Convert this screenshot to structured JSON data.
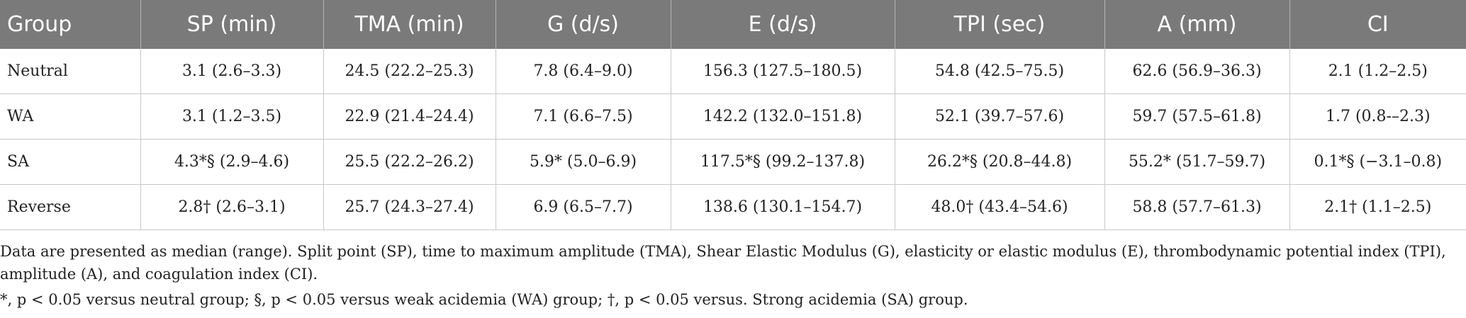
{
  "table": {
    "headers": [
      "Group",
      "SP (min)",
      "TMA (min)",
      "G (d/s)",
      "E (d/s)",
      "TPI (sec)",
      "A (mm)",
      "CI"
    ],
    "rows": [
      [
        "Neutral",
        "3.1 (2.6–3.3)",
        "24.5 (22.2–25.3)",
        "7.8 (6.4–9.0)",
        "156.3 (127.5–180.5)",
        "54.8 (42.5–75.5)",
        "62.6 (56.9–36.3)",
        "2.1 (1.2–2.5)"
      ],
      [
        "WA",
        "3.1 (1.2–3.5)",
        "22.9 (21.4–24.4)",
        "7.1 (6.6–7.5)",
        "142.2 (132.0–151.8)",
        "52.1 (39.7–57.6)",
        "59.7 (57.5–61.8)",
        "1.7 (0.8-–2.3)"
      ],
      [
        "SA",
        "4.3*§ (2.9–4.6)",
        "25.5 (22.2–26.2)",
        "5.9* (5.0–6.9)",
        "117.5*§ (99.2–137.8)",
        "26.2*§ (20.8–44.8)",
        "55.2* (51.7–59.7)",
        "0.1*§ (−3.1–0.8)"
      ],
      [
        "Reverse",
        "2.8† (2.6–3.1)",
        "25.7 (24.3–27.4)",
        "6.9 (6.5–7.7)",
        "138.6 (130.1–154.7)",
        "48.0† (43.4–54.6)",
        "58.8 (57.7–61.3)",
        "2.1† (1.1–2.5)"
      ]
    ]
  },
  "footnotes": {
    "note1": "Data are presented as median (range). Split point (SP), time to maximum amplitude (TMA), Shear Elastic Modulus (G), elasticity or elastic modulus (E), thrombodynamic potential index (TPI), amplitude (A), and coagulation index (CI).",
    "note2": "*, p < 0.05 versus neutral group; §, p < 0.05 versus weak acidemia (WA) group; †, p < 0.05 versus. Strong acidemia (SA) group."
  }
}
